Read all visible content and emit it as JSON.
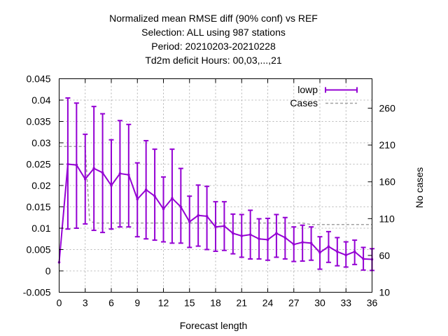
{
  "chart_data": {
    "type": "line",
    "title_lines": [
      "Normalized mean RMSE diff (90% conf) vs REF",
      "Selection: ALL using   987 stations",
      "Period: 20210203-20210228",
      "Td2m deficit   Hours:  00,03,...,21"
    ],
    "xlabel": "Forecast length",
    "ylabel": "",
    "y2label": "No cases",
    "xlim": [
      0,
      36
    ],
    "ylim": [
      -0.005,
      0.045
    ],
    "y2lim": [
      10,
      300
    ],
    "xticks": [
      "0",
      "3",
      "6",
      "9",
      "12",
      "15",
      "18",
      "21",
      "24",
      "27",
      "30",
      "33",
      "36"
    ],
    "yticks": [
      "-0.005",
      "0",
      "0.005",
      "0.01",
      "0.015",
      "0.02",
      "0.025",
      "0.03",
      "0.035",
      "0.04",
      "0.045"
    ],
    "y2ticks": [
      "10",
      "60",
      "110",
      "160",
      "210",
      "260"
    ],
    "grid": true,
    "legend_position": "top-right",
    "series": [
      {
        "name": "lowp",
        "color": "#9400d3",
        "style": "errorbars-line",
        "x": [
          0,
          1,
          2,
          3,
          4,
          5,
          6,
          7,
          8,
          9,
          10,
          11,
          12,
          13,
          14,
          15,
          16,
          17,
          18,
          19,
          20,
          21,
          22,
          23,
          24,
          25,
          26,
          27,
          28,
          29,
          30,
          31,
          32,
          33,
          34,
          35,
          36
        ],
        "y": [
          0.002,
          0.025,
          0.0248,
          0.0215,
          0.024,
          0.023,
          0.02,
          0.0228,
          0.0225,
          0.0168,
          0.019,
          0.0175,
          0.0145,
          0.017,
          0.015,
          0.0115,
          0.013,
          0.0128,
          0.0103,
          0.0105,
          0.0088,
          0.0082,
          0.0085,
          0.0075,
          0.0073,
          0.0088,
          0.0078,
          0.0062,
          0.0067,
          0.0065,
          0.0043,
          0.0057,
          0.0045,
          0.0037,
          0.0045,
          0.0028,
          0.0027
        ],
        "low": [
          0.002,
          0.0098,
          0.01,
          0.011,
          0.0095,
          0.009,
          0.0098,
          0.0103,
          0.0103,
          0.008,
          0.0075,
          0.0072,
          0.0068,
          0.0065,
          0.0065,
          0.0055,
          0.0058,
          0.005,
          0.0046,
          0.0048,
          0.004,
          0.0032,
          0.0028,
          0.0028,
          0.0025,
          0.0032,
          0.0028,
          0.0022,
          0.0023,
          0.0025,
          0.0004,
          0.002,
          0.0012,
          0.0009,
          0.0015,
          0.0002,
          0.0001
        ],
        "high": [
          0.002,
          0.0405,
          0.0393,
          0.032,
          0.0385,
          0.0368,
          0.0307,
          0.0352,
          0.0343,
          0.0253,
          0.0305,
          0.0285,
          0.022,
          0.0285,
          0.024,
          0.0175,
          0.0201,
          0.0198,
          0.0162,
          0.0162,
          0.0133,
          0.0132,
          0.0142,
          0.0122,
          0.0123,
          0.0132,
          0.0125,
          0.0103,
          0.0107,
          0.0103,
          0.008,
          0.0092,
          0.0078,
          0.0068,
          0.0072,
          0.0055,
          0.0052
        ]
      },
      {
        "name": "Cases",
        "color": "#a0a0a0",
        "style": "dashed-step",
        "axis": "y2",
        "x": [
          0,
          3,
          3.5,
          4,
          8,
          9,
          28,
          29,
          36
        ],
        "y": [
          208,
          208,
          108,
          104,
          104,
          104,
          104,
          102,
          102
        ]
      }
    ]
  }
}
